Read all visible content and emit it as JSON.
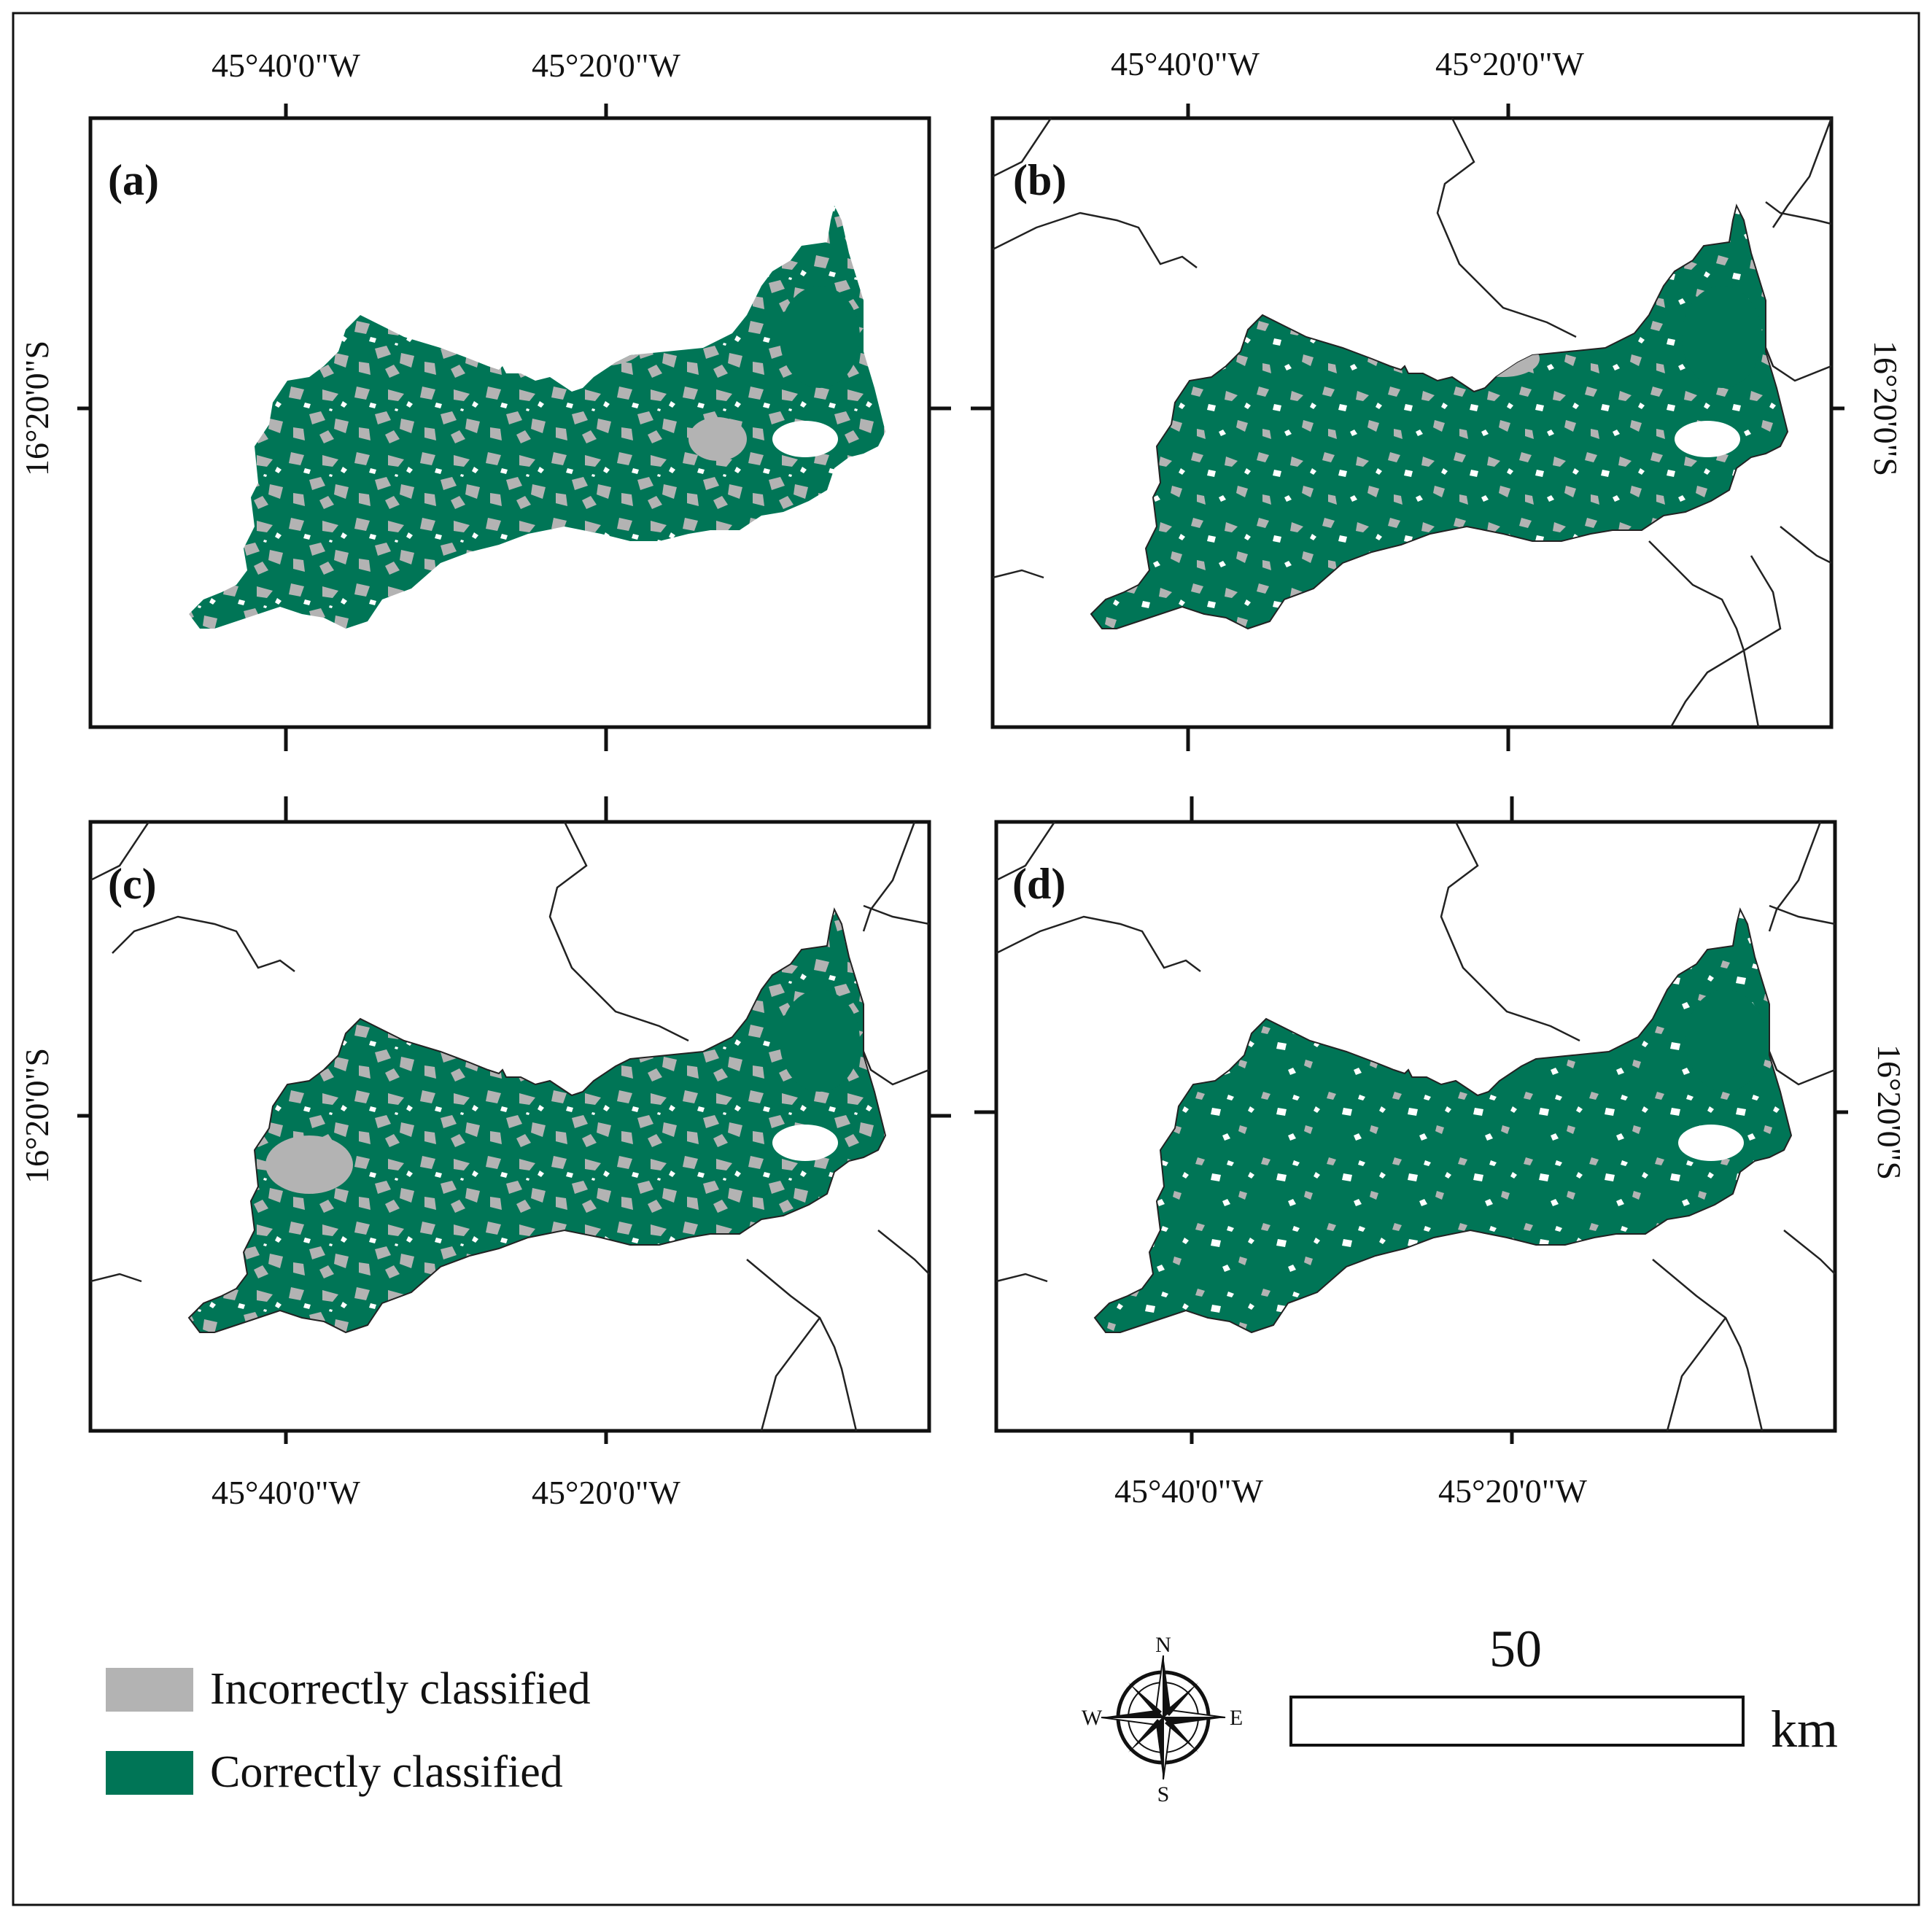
{
  "panels": [
    {
      "id": "a",
      "label": "(a)",
      "boundaries": false,
      "style": "many-grey"
    },
    {
      "id": "b",
      "label": "(b)",
      "boundaries": true,
      "style": "mid-grey"
    },
    {
      "id": "c",
      "label": "(c)",
      "boundaries": true,
      "style": "many-grey"
    },
    {
      "id": "d",
      "label": "(d)",
      "boundaries": true,
      "style": "few-grey"
    }
  ],
  "axes": {
    "lon_labels": [
      "45°40'0\"W",
      "45°20'0\"W"
    ],
    "lat_label": "16°20'0\"S"
  },
  "legend": {
    "items": [
      {
        "label": "Incorrectly classified",
        "color": "#b3b3b3"
      },
      {
        "label": "Correctly classified",
        "color": "#007556"
      }
    ]
  },
  "compass": {
    "n": "N",
    "s": "S",
    "e": "E",
    "w": "W"
  },
  "scalebar": {
    "value": "50",
    "unit": "km"
  },
  "colors": {
    "correct": "#007556",
    "incorrect": "#b3b3b3",
    "frame": "#111111",
    "boundary": "#222222"
  }
}
